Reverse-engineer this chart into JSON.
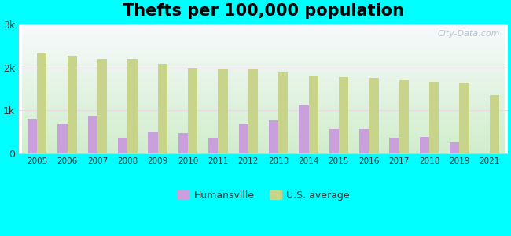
{
  "title": "Thefts per 100,000 population",
  "years": [
    2005,
    2006,
    2007,
    2008,
    2009,
    2010,
    2011,
    2012,
    2013,
    2014,
    2015,
    2016,
    2017,
    2018,
    2019,
    2021
  ],
  "humansville": [
    800,
    700,
    870,
    340,
    490,
    470,
    340,
    670,
    760,
    1120,
    570,
    560,
    370,
    380,
    250,
    0
  ],
  "us_average": [
    2330,
    2270,
    2200,
    2200,
    2080,
    1980,
    1960,
    1960,
    1890,
    1810,
    1780,
    1760,
    1710,
    1670,
    1640,
    1360
  ],
  "humansville_color": "#c9a0dc",
  "us_average_color": "#c8d48a",
  "background_color": "#00ffff",
  "ylim": [
    0,
    3000
  ],
  "yticks": [
    0,
    1000,
    2000,
    3000
  ],
  "ytick_labels": [
    "0",
    "1k",
    "2k",
    "3k"
  ],
  "title_fontsize": 15,
  "legend_labels": [
    "Humansville",
    "U.S. average"
  ],
  "watermark": "City-Data.com",
  "bar_width": 0.32
}
